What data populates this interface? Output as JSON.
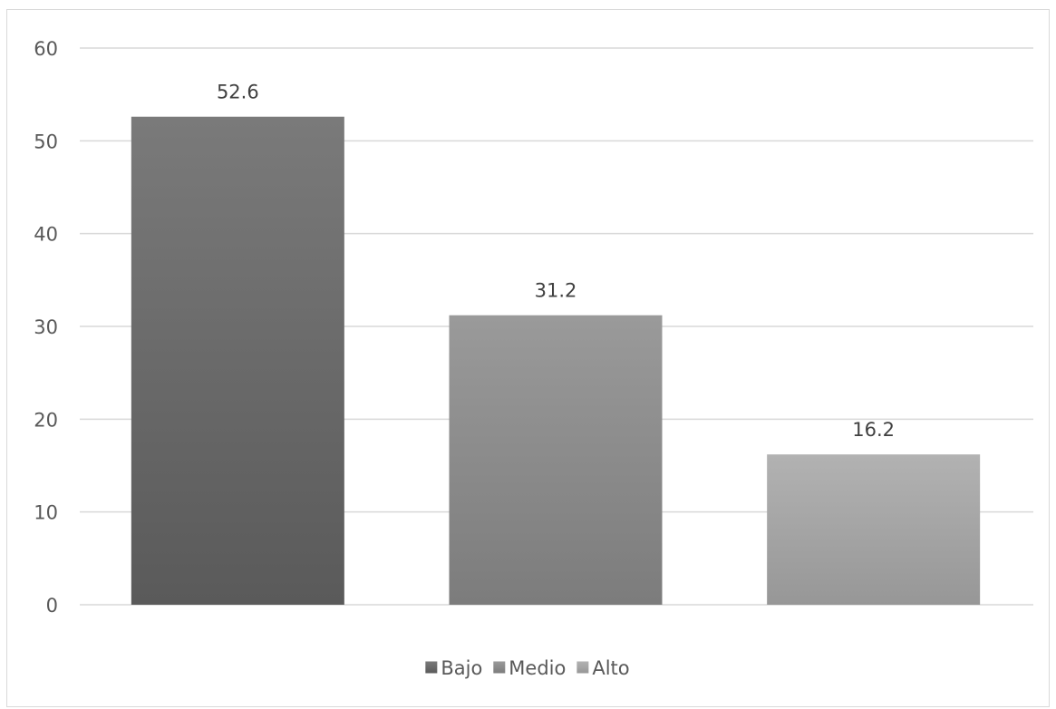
{
  "chart_data": {
    "type": "bar",
    "categories": [
      "Bajo",
      "Medio",
      "Alto"
    ],
    "values": [
      52.6,
      31.2,
      16.2
    ],
    "data_labels": [
      "52.6",
      "31.2",
      "16.2"
    ],
    "legend": [
      "Bajo",
      "Medio",
      "Alto"
    ],
    "legend_position": "bottom",
    "title": "",
    "xlabel": "",
    "ylabel": "",
    "ylim": [
      0,
      60
    ],
    "yticks": [
      "0",
      "10",
      "20",
      "30",
      "40",
      "50",
      "60"
    ],
    "grid": true,
    "colors": {
      "Bajo": [
        "#7a7a7a",
        "#5a5a5a"
      ],
      "Medio": [
        "#9a9a9a",
        "#7c7c7c"
      ],
      "Alto": [
        "#b2b2b2",
        "#979797"
      ]
    }
  }
}
